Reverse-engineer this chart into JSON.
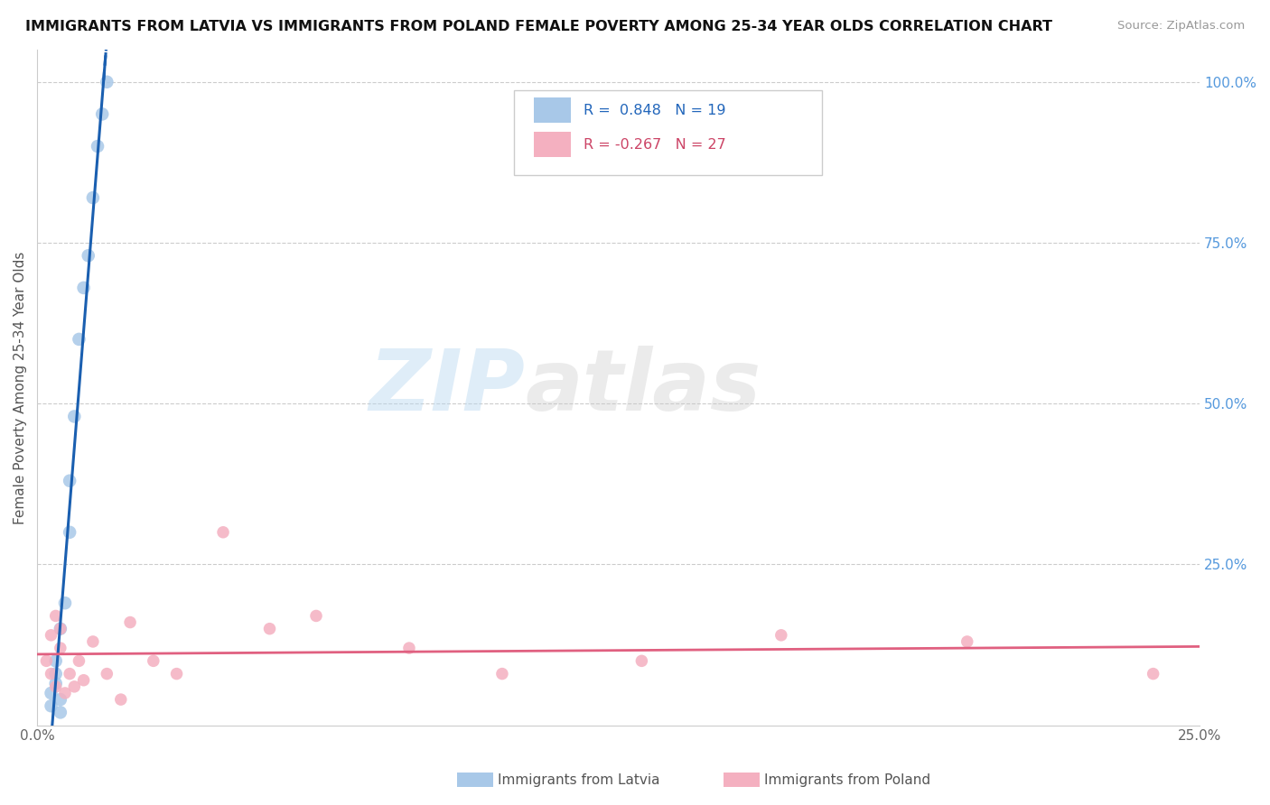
{
  "title": "IMMIGRANTS FROM LATVIA VS IMMIGRANTS FROM POLAND FEMALE POVERTY AMONG 25-34 YEAR OLDS CORRELATION CHART",
  "source": "Source: ZipAtlas.com",
  "ylabel": "Female Poverty Among 25-34 Year Olds",
  "xlim": [
    0.0,
    0.25
  ],
  "ylim": [
    0.0,
    1.05
  ],
  "latvia_R": 0.848,
  "latvia_N": 19,
  "poland_R": -0.267,
  "poland_N": 27,
  "latvia_color": "#a8c8e8",
  "poland_color": "#f4b0c0",
  "latvia_line_color": "#1a5fb0",
  "poland_line_color": "#e06080",
  "legend_label_latvia": "Immigrants from Latvia",
  "legend_label_poland": "Immigrants from Poland",
  "watermark_zip": "ZIP",
  "watermark_atlas": "atlas",
  "latvia_x": [
    0.003,
    0.003,
    0.004,
    0.004,
    0.004,
    0.005,
    0.005,
    0.005,
    0.006,
    0.007,
    0.007,
    0.008,
    0.009,
    0.01,
    0.011,
    0.012,
    0.013,
    0.014,
    0.015
  ],
  "latvia_y": [
    0.03,
    0.05,
    0.065,
    0.08,
    0.1,
    0.02,
    0.04,
    0.15,
    0.19,
    0.3,
    0.38,
    0.48,
    0.6,
    0.68,
    0.73,
    0.82,
    0.9,
    0.95,
    1.0
  ],
  "poland_x": [
    0.002,
    0.003,
    0.003,
    0.004,
    0.004,
    0.005,
    0.005,
    0.006,
    0.007,
    0.008,
    0.009,
    0.01,
    0.012,
    0.015,
    0.018,
    0.02,
    0.025,
    0.03,
    0.04,
    0.05,
    0.06,
    0.08,
    0.1,
    0.13,
    0.16,
    0.2,
    0.24
  ],
  "poland_y": [
    0.1,
    0.08,
    0.14,
    0.06,
    0.17,
    0.12,
    0.15,
    0.05,
    0.08,
    0.06,
    0.1,
    0.07,
    0.13,
    0.08,
    0.04,
    0.16,
    0.1,
    0.08,
    0.3,
    0.15,
    0.17,
    0.12,
    0.08,
    0.1,
    0.14,
    0.13,
    0.08
  ]
}
